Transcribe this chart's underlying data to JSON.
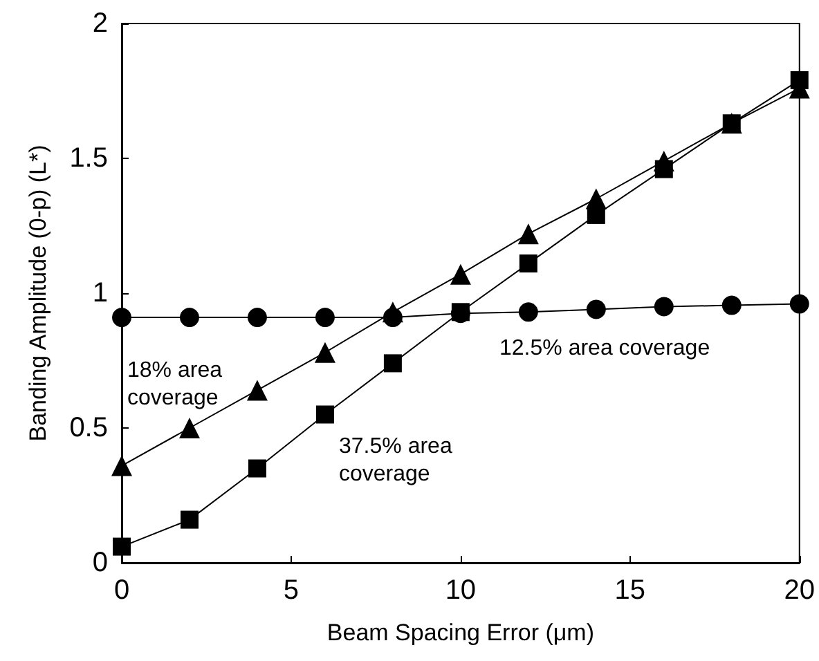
{
  "chart_data": {
    "type": "line",
    "xlabel": "Beam Spacing Error (μm)",
    "ylabel": "Banding Amplitude (0-p) (L*)",
    "x": [
      0,
      2,
      4,
      6,
      8,
      10,
      12,
      14,
      16,
      18,
      20
    ],
    "series": [
      {
        "color": "#000000",
        "marker": "circle",
        "values": [
          0.91,
          0.91,
          0.91,
          0.91,
          0.91,
          0.925,
          0.93,
          0.94,
          0.95,
          0.955,
          0.96
        ]
      },
      {
        "color": "#000000",
        "marker": "triangle",
        "values": [
          0.36,
          0.5,
          0.64,
          0.78,
          0.93,
          1.07,
          1.22,
          1.35,
          1.49,
          1.63,
          1.76
        ]
      },
      {
        "color": "#000000",
        "marker": "square",
        "values": [
          0.06,
          0.16,
          0.35,
          0.55,
          0.74,
          0.93,
          1.11,
          1.29,
          1.46,
          1.63,
          1.79
        ]
      }
    ],
    "xlim": [
      0,
      20
    ],
    "xticks": [
      0,
      5,
      10,
      15,
      20
    ],
    "ylim": [
      0,
      2
    ],
    "yticks": [
      0,
      0.5,
      1,
      1.5,
      2
    ],
    "grid": false,
    "annotations": [
      "18% area\ncoverage",
      "37.5% area\ncoverage",
      "12.5% area coverage"
    ]
  }
}
